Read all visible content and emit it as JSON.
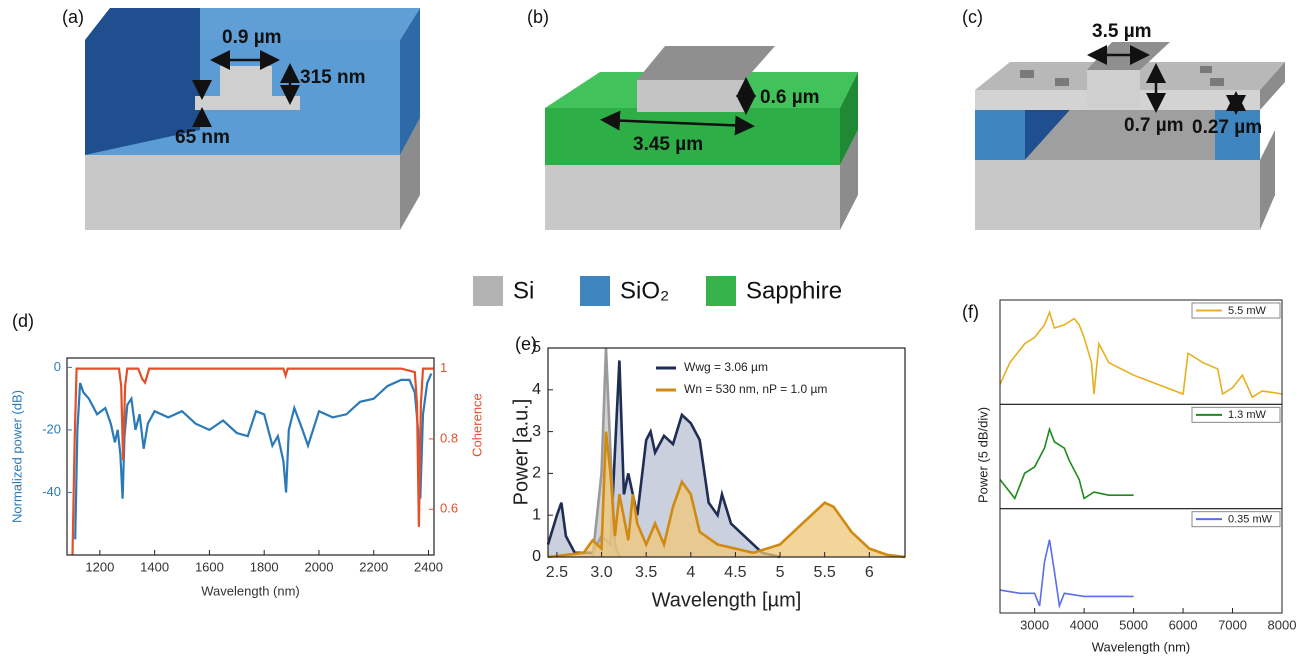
{
  "panels": [
    {
      "label": "(a)",
      "annotations": [
        "0.9 µm",
        "315 nm",
        "65 nm"
      ]
    },
    {
      "label": "(b)",
      "annotations": [
        "0.6 µm",
        "3.45 µm"
      ]
    },
    {
      "label": "(c)",
      "annotations": [
        "3.5 µm",
        "0.7 µm",
        "0.27 µm"
      ]
    }
  ],
  "legend": [
    {
      "name": "Si",
      "color": "#b3b3b3"
    },
    {
      "name": "SiO₂",
      "color": "#3f86c1"
    },
    {
      "name": "Sapphire",
      "color": "#35b24a"
    }
  ],
  "chart_data": [
    {
      "type": "line",
      "label": "(d)",
      "xlabel": "Wavelength (nm)",
      "ylabel": "Normalized power (dB)",
      "y2label": "Coherence",
      "ylabel_color": "#2a7ab8",
      "y2label_color": "#e0502a",
      "xlim": [
        1080,
        2420
      ],
      "ylim": [
        -60,
        3
      ],
      "y2lim": [
        0.47,
        1.03
      ],
      "xticks": [
        1200,
        1400,
        1600,
        1800,
        2000,
        2200,
        2400
      ],
      "yticks": [
        0,
        -20,
        -40
      ],
      "y2ticks": [
        1,
        0.8,
        0.6
      ],
      "series": [
        {
          "color": "#2a7ab8",
          "x": [
            1110,
            1118,
            1128,
            1140,
            1160,
            1190,
            1220,
            1240,
            1255,
            1265,
            1275,
            1283,
            1290,
            1300,
            1315,
            1330,
            1345,
            1360,
            1375,
            1400,
            1450,
            1500,
            1550,
            1600,
            1650,
            1700,
            1740,
            1770,
            1800,
            1830,
            1850,
            1870,
            1880,
            1890,
            1910,
            1940,
            1960,
            2000,
            2050,
            2100,
            2150,
            2200,
            2250,
            2300,
            2330,
            2350,
            2362,
            2370,
            2380,
            2395,
            2410
          ],
          "values": [
            -55,
            -20,
            -5,
            -8,
            -10,
            -15,
            -13,
            -18,
            -24,
            -20,
            -28,
            -42,
            -22,
            -12,
            -10,
            -20,
            -15,
            -26,
            -18,
            -14,
            -16,
            -14,
            -18,
            -20,
            -17,
            -21,
            -22,
            -14,
            -15,
            -25,
            -22,
            -30,
            -40,
            -20,
            -13,
            -20,
            -25,
            -14,
            -16,
            -15,
            -11,
            -10,
            -6,
            -4,
            -4,
            -8,
            -20,
            -42,
            -15,
            -5,
            -2
          ]
        },
        {
          "color": "#e0502a",
          "axis": "y2",
          "x": [
            1100,
            1108,
            1115,
            1200,
            1270,
            1278,
            1285,
            1292,
            1300,
            1340,
            1355,
            1365,
            1380,
            1500,
            1870,
            1878,
            1886,
            1900,
            2300,
            2350,
            2358,
            2365,
            2372,
            2380,
            2400,
            2420
          ],
          "values": [
            0.47,
            0.8,
            1,
            1,
            1,
            0.95,
            0.74,
            0.95,
            1,
            1,
            0.97,
            0.96,
            1,
            1,
            1,
            0.98,
            1,
            1,
            1,
            0.99,
            0.9,
            0.55,
            0.9,
            1,
            1,
            1
          ]
        }
      ]
    },
    {
      "type": "area",
      "label": "(e)",
      "xlabel": "Wavelength [µm]",
      "ylabel": "Power [a.u.]",
      "xlim": [
        2.4,
        6.4
      ],
      "ylim": [
        0,
        5
      ],
      "xticks": [
        2.5,
        {
          "value": 3,
          "label": "3.0"
        },
        3.5,
        4,
        4.5,
        5,
        5.5,
        6
      ],
      "yticks": [
        0,
        1,
        2,
        3,
        4,
        5
      ],
      "series": [
        {
          "name": "Wwg = 3.06 µm",
          "color": "#1f2d55",
          "fill": "#b9c0d3",
          "x": [
            2.4,
            2.5,
            2.55,
            2.6,
            2.7,
            2.9,
            3.0,
            3.1,
            3.15,
            3.2,
            3.25,
            3.3,
            3.4,
            3.5,
            3.55,
            3.6,
            3.7,
            3.8,
            3.9,
            4.0,
            4.1,
            4.2,
            4.3,
            4.35,
            4.45,
            4.6,
            4.8,
            5.0
          ],
          "values": [
            0.3,
            1.0,
            1.3,
            0.5,
            0.1,
            0.1,
            0.5,
            0.3,
            2.5,
            4.7,
            1.5,
            2.0,
            1.0,
            2.8,
            3.0,
            2.5,
            2.9,
            2.7,
            3.4,
            3.2,
            2.8,
            1.3,
            1.0,
            1.5,
            0.8,
            0.5,
            0.1,
            0
          ]
        },
        {
          "name": "Wn = 530 nm, nP = 1.0 µm",
          "color": "#d08a12",
          "fill": "#f0c777",
          "x": [
            2.4,
            2.8,
            2.9,
            3.0,
            3.05,
            3.1,
            3.15,
            3.2,
            3.3,
            3.35,
            3.4,
            3.5,
            3.6,
            3.7,
            3.8,
            3.9,
            4.0,
            4.1,
            4.3,
            4.5,
            4.7,
            5.0,
            5.2,
            5.4,
            5.5,
            5.6,
            5.8,
            6.0,
            6.2,
            6.4
          ],
          "values": [
            0,
            0.1,
            0.4,
            0.2,
            3.0,
            2.0,
            0.5,
            1.5,
            0.4,
            1.5,
            0.8,
            0.3,
            0.8,
            0.3,
            1.2,
            1.8,
            1.5,
            0.6,
            0.3,
            0.2,
            0.1,
            0.3,
            0.7,
            1.1,
            1.3,
            1.2,
            0.6,
            0.2,
            0.05,
            0
          ]
        },
        {
          "color": "#9a9a9a",
          "fill": "#c4c4c4",
          "x": [
            2.9,
            3.0,
            3.05,
            3.1,
            3.15,
            3.2
          ],
          "values": [
            0,
            2.0,
            5.0,
            2.5,
            0.3,
            0
          ]
        }
      ]
    },
    {
      "type": "multiples",
      "label": "(f)",
      "xlabel": "Wavelength (nm)",
      "ylabel": "Power (5 dB/div)",
      "xlim": [
        2300,
        8000
      ],
      "ylim": [
        0,
        30
      ],
      "xticks": [
        3000,
        4000,
        5000,
        6000,
        7000,
        8000
      ],
      "series": [
        {
          "name": "5.5 mW",
          "color": "#e8b020",
          "x": [
            2300,
            2500,
            2800,
            3000,
            3200,
            3300,
            3400,
            3600,
            3800,
            3900,
            4000,
            4150,
            4200,
            4300,
            4500,
            5000,
            5500,
            6000,
            6100,
            6400,
            6700,
            6800,
            7000,
            7200,
            7400,
            7600,
            8000
          ],
          "values": [
            5,
            12,
            18,
            20,
            24,
            28,
            23,
            24,
            26,
            24,
            20,
            12,
            2,
            18,
            12,
            8,
            5,
            2,
            15,
            12,
            10,
            2,
            4,
            8,
            1,
            3,
            2
          ]
        },
        {
          "name": "1.3 mW",
          "color": "#1e8a1e",
          "x": [
            2300,
            2600,
            2800,
            3000,
            3200,
            3300,
            3400,
            3600,
            3700,
            3900,
            4000,
            4200,
            4500,
            5000
          ],
          "values": [
            8,
            2,
            10,
            12,
            18,
            24,
            20,
            18,
            14,
            8,
            2,
            4,
            3,
            3
          ]
        },
        {
          "name": "0.35 mW",
          "color": "#5a6ee8",
          "x": [
            2300,
            2700,
            3000,
            3100,
            3200,
            3300,
            3400,
            3500,
            3600,
            4000,
            5000
          ],
          "values": [
            6,
            5,
            5,
            1,
            15,
            22,
            12,
            1,
            5,
            4,
            4
          ]
        }
      ]
    }
  ]
}
